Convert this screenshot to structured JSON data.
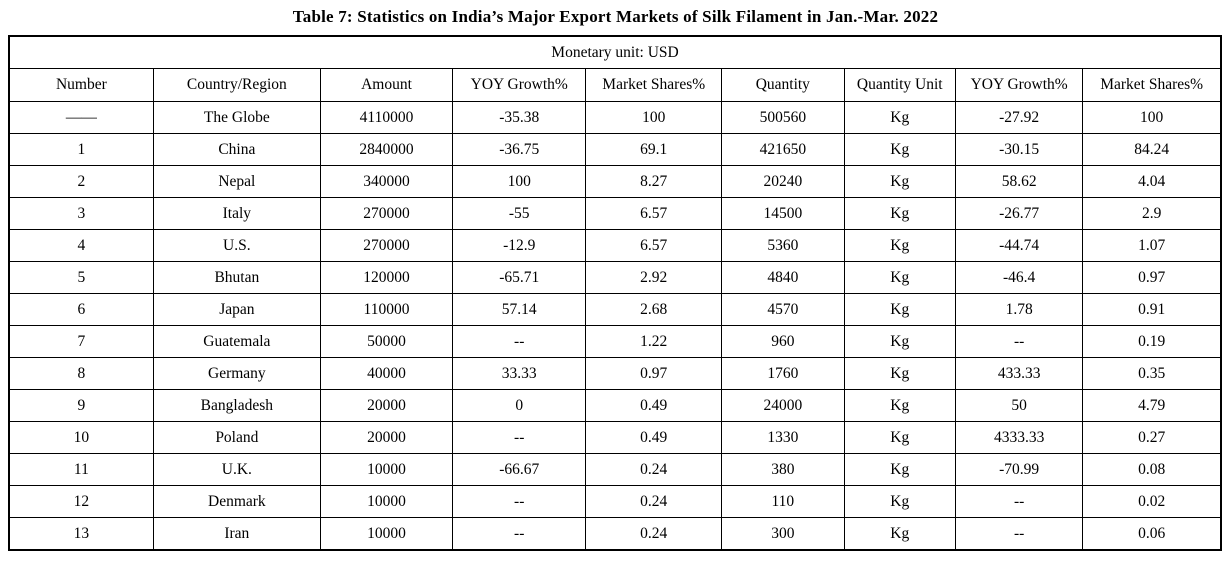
{
  "title": "Table 7: Statistics on India’s Major Export Markets of Silk Filament in Jan.-Mar. 2022",
  "monetary_unit_note": "Monetary unit: USD",
  "table": {
    "headers": [
      "Number",
      "Country/Region",
      "Amount",
      "YOY Growth%",
      "Market Shares%",
      "Quantity",
      "Quantity Unit",
      "YOY Growth%",
      "Market Shares%"
    ],
    "rows": [
      [
        "——",
        "The Globe",
        "4110000",
        "-35.38",
        "100",
        "500560",
        "Kg",
        "-27.92",
        "100"
      ],
      [
        "1",
        "China",
        "2840000",
        "-36.75",
        "69.1",
        "421650",
        "Kg",
        "-30.15",
        "84.24"
      ],
      [
        "2",
        "Nepal",
        "340000",
        "100",
        "8.27",
        "20240",
        "Kg",
        "58.62",
        "4.04"
      ],
      [
        "3",
        "Italy",
        "270000",
        "-55",
        "6.57",
        "14500",
        "Kg",
        "-26.77",
        "2.9"
      ],
      [
        "4",
        "U.S.",
        "270000",
        "-12.9",
        "6.57",
        "5360",
        "Kg",
        "-44.74",
        "1.07"
      ],
      [
        "5",
        "Bhutan",
        "120000",
        "-65.71",
        "2.92",
        "4840",
        "Kg",
        "-46.4",
        "0.97"
      ],
      [
        "6",
        "Japan",
        "110000",
        "57.14",
        "2.68",
        "4570",
        "Kg",
        "1.78",
        "0.91"
      ],
      [
        "7",
        "Guatemala",
        "50000",
        "--",
        "1.22",
        "960",
        "Kg",
        "--",
        "0.19"
      ],
      [
        "8",
        "Germany",
        "40000",
        "33.33",
        "0.97",
        "1760",
        "Kg",
        "433.33",
        "0.35"
      ],
      [
        "9",
        "Bangladesh",
        "20000",
        "0",
        "0.49",
        "24000",
        "Kg",
        "50",
        "4.79"
      ],
      [
        "10",
        "Poland",
        "20000",
        "--",
        "0.49",
        "1330",
        "Kg",
        "4333.33",
        "0.27"
      ],
      [
        "11",
        "U.K.",
        "10000",
        "-66.67",
        "0.24",
        "380",
        "Kg",
        "-70.99",
        "0.08"
      ],
      [
        "12",
        "Denmark",
        "10000",
        "--",
        "0.24",
        "110",
        "Kg",
        "--",
        "0.02"
      ],
      [
        "13",
        "Iran",
        "10000",
        "--",
        "0.24",
        "300",
        "Kg",
        "--",
        "0.06"
      ]
    ]
  }
}
